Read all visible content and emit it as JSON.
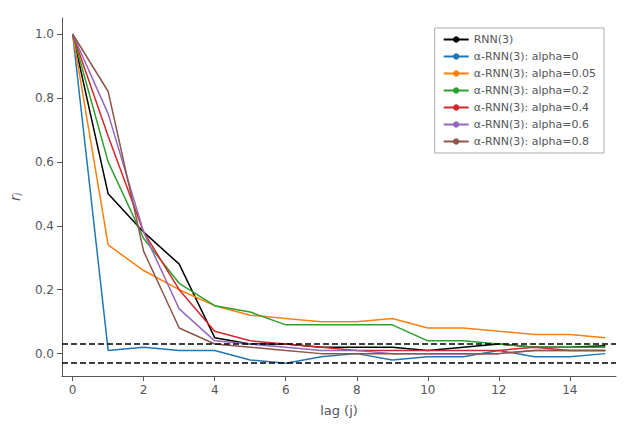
{
  "chart_data": {
    "type": "line",
    "xlabel": "lag (j)",
    "ylabel": "rⱼ",
    "x": [
      0,
      1,
      2,
      3,
      4,
      5,
      6,
      7,
      8,
      9,
      10,
      11,
      12,
      13,
      14,
      15
    ],
    "xlim": [
      -0.3,
      15.3
    ],
    "ylim": [
      -0.07,
      1.05
    ],
    "xticks": [
      0,
      2,
      4,
      6,
      8,
      10,
      12,
      14
    ],
    "yticks": [
      {
        "value": 0.0,
        "label": "0.0"
      },
      0.2,
      0.4,
      0.6,
      0.8,
      {
        "value": 1.0,
        "label": "1.0"
      }
    ],
    "grid": false,
    "legend": "upper right",
    "hlines": {
      "values": [
        0.03,
        -0.03
      ],
      "color": "#000000",
      "line_style": "dashed"
    },
    "series": [
      {
        "name": "RNN(3)",
        "color": "#000000",
        "values": [
          1.0,
          0.5,
          0.38,
          0.28,
          0.05,
          0.03,
          0.03,
          0.02,
          0.02,
          0.02,
          0.01,
          0.02,
          0.03,
          0.02,
          0.02,
          0.025
        ]
      },
      {
        "name": "α-RNN(3): alpha=0",
        "color": "#1f77b4",
        "values": [
          1.0,
          0.01,
          0.02,
          0.01,
          0.01,
          -0.02,
          -0.03,
          -0.01,
          0.0,
          -0.02,
          -0.01,
          -0.01,
          0.01,
          -0.01,
          -0.01,
          0.0
        ]
      },
      {
        "name": "α-RNN(3): alpha=0.05",
        "color": "#ff7f0e",
        "values": [
          1.0,
          0.34,
          0.26,
          0.2,
          0.15,
          0.12,
          0.11,
          0.1,
          0.1,
          0.11,
          0.08,
          0.08,
          0.07,
          0.06,
          0.06,
          0.05
        ]
      },
      {
        "name": "α-RNN(3): alpha=0.2",
        "color": "#2ca02c",
        "values": [
          1.0,
          0.6,
          0.36,
          0.22,
          0.15,
          0.13,
          0.09,
          0.09,
          0.09,
          0.09,
          0.04,
          0.04,
          0.03,
          0.02,
          0.02,
          0.02
        ]
      },
      {
        "name": "α-RNN(3): alpha=0.4",
        "color": "#d62728",
        "values": [
          1.0,
          0.68,
          0.38,
          0.2,
          0.07,
          0.04,
          0.03,
          0.02,
          0.01,
          0.01,
          0.01,
          0.01,
          0.01,
          0.02,
          0.01,
          0.01
        ]
      },
      {
        "name": "α-RNN(3): alpha=0.6",
        "color": "#9467bd",
        "values": [
          1.0,
          0.75,
          0.38,
          0.14,
          0.04,
          0.03,
          0.02,
          0.01,
          0.01,
          0.0,
          0.0,
          0.0,
          0.0,
          0.01,
          0.01,
          0.01
        ]
      },
      {
        "name": "α-RNN(3): alpha=0.8",
        "color": "#8c564b",
        "values": [
          1.0,
          0.82,
          0.32,
          0.08,
          0.03,
          0.02,
          0.01,
          0.0,
          0.0,
          0.0,
          0.0,
          0.0,
          0.0,
          0.01,
          0.01,
          0.01
        ]
      }
    ]
  }
}
